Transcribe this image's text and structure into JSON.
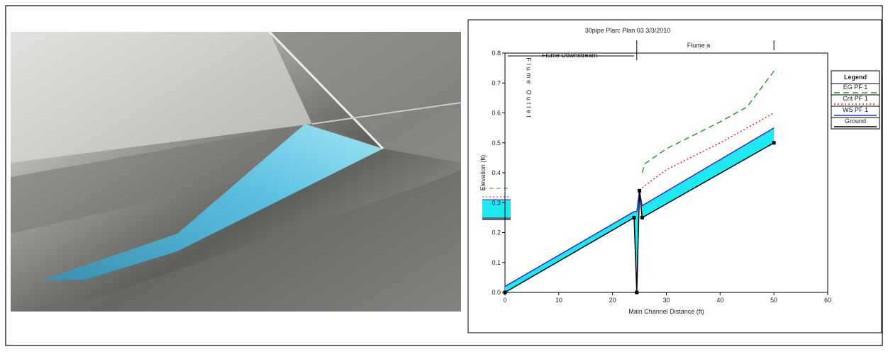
{
  "chart_data": {
    "type": "line",
    "title": "30pipe    Plan: Plan 03    3/3/2010",
    "xlabel": "Main Channel Distance (ft)",
    "ylabel": "Elevation (ft)",
    "legend_title": "Legend",
    "annotations": [
      "Flume Downstream",
      "Flume a",
      "Flume Outlet"
    ],
    "xlim": [
      0,
      60
    ],
    "xticks": [
      0,
      10,
      20,
      30,
      40,
      50,
      60
    ],
    "ylim": [
      0,
      0.8
    ],
    "yticks": [
      {
        "value": 0,
        "label": "0.0"
      },
      0.1,
      0.2,
      0.3,
      0.4,
      0.5,
      0.6,
      0.7,
      0.8
    ],
    "legend": "right",
    "series": [
      {
        "name": "EG PF 1",
        "color": "#2a9a2a",
        "dash": "8,5",
        "x": [
          25.5,
          26,
          30,
          40,
          45,
          50
        ],
        "values": [
          0.4,
          0.43,
          0.48,
          0.57,
          0.62,
          0.74
        ]
      },
      {
        "name": "Crit PF 1",
        "color": "#e02020",
        "dash": "2,3",
        "x": [
          25.5,
          30,
          40,
          50
        ],
        "values": [
          0.35,
          0.41,
          0.5,
          0.6
        ]
      },
      {
        "name": "WS PF 1",
        "color": "#2030e0",
        "dash": "",
        "fill": "#20e8f0",
        "x": [
          0,
          24,
          24.5,
          25,
          25.5,
          50
        ],
        "values": [
          0.02,
          0.27,
          0.27,
          0.34,
          0.29,
          0.55
        ]
      },
      {
        "name": "Ground",
        "color": "#000000",
        "dash": "",
        "x": [
          0,
          24,
          24.5,
          25,
          25.5,
          50
        ],
        "values": [
          0,
          0.25,
          0,
          0.34,
          0.25,
          0.5
        ]
      }
    ]
  }
}
